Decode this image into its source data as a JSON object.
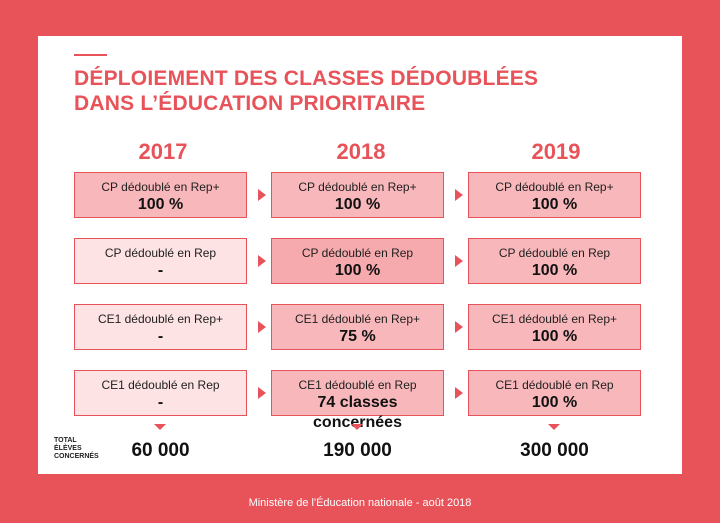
{
  "title": {
    "line1": "DÉPLOIEMENT DES CLASSES DÉDOUBLÉES",
    "line2": "DANS L’ÉDUCATION PRIORITAIRE"
  },
  "years": [
    "2017",
    "2018",
    "2019"
  ],
  "rows": [
    {
      "cells": [
        {
          "label": "CP dédoublé en Rep+",
          "value": "100 %"
        },
        {
          "label": "CP dédoublé en Rep+",
          "value": "100 %"
        },
        {
          "label": "CP dédoublé en Rep+",
          "value": "100 %"
        }
      ]
    },
    {
      "cells": [
        {
          "label": "CP dédoublé en Rep",
          "value": "-"
        },
        {
          "label": "CP dédoublé en Rep",
          "value": "100 %"
        },
        {
          "label": "CP dédoublé en Rep",
          "value": "100 %"
        }
      ]
    },
    {
      "cells": [
        {
          "label": "CE1 dédoublé en Rep+",
          "value": "-"
        },
        {
          "label": "CE1 dédoublé en Rep+",
          "value": "75 %"
        },
        {
          "label": "CE1 dédoublé en Rep+",
          "value": "100 %"
        }
      ]
    },
    {
      "cells": [
        {
          "label": "CE1 dédoublé en Rep",
          "value": "-"
        },
        {
          "label": "CE1 dédoublé en Rep",
          "value": "74 classes concernées"
        },
        {
          "label": "CE1 dédoublé en Rep",
          "value": "100 %"
        }
      ]
    }
  ],
  "totals": {
    "label_lines": [
      "TOTAL",
      "ÉLÈVES",
      "CONCERNÉS"
    ],
    "values": [
      "60 000",
      "190 000",
      "300 000"
    ]
  },
  "footer": "Ministère de l'Éducation nationale - août 2018",
  "colors": {
    "brand_red": "#e8535a",
    "cell_light": "#fde3e4",
    "cell_medium": "#f8b8bb",
    "cell_strong": "#f6aaad"
  },
  "cell_tones": [
    [
      "cell_medium",
      "cell_medium",
      "cell_medium"
    ],
    [
      "cell_light",
      "cell_strong",
      "cell_medium"
    ],
    [
      "cell_light",
      "cell_medium",
      "cell_medium"
    ],
    [
      "cell_light",
      "cell_medium",
      "cell_medium"
    ]
  ]
}
